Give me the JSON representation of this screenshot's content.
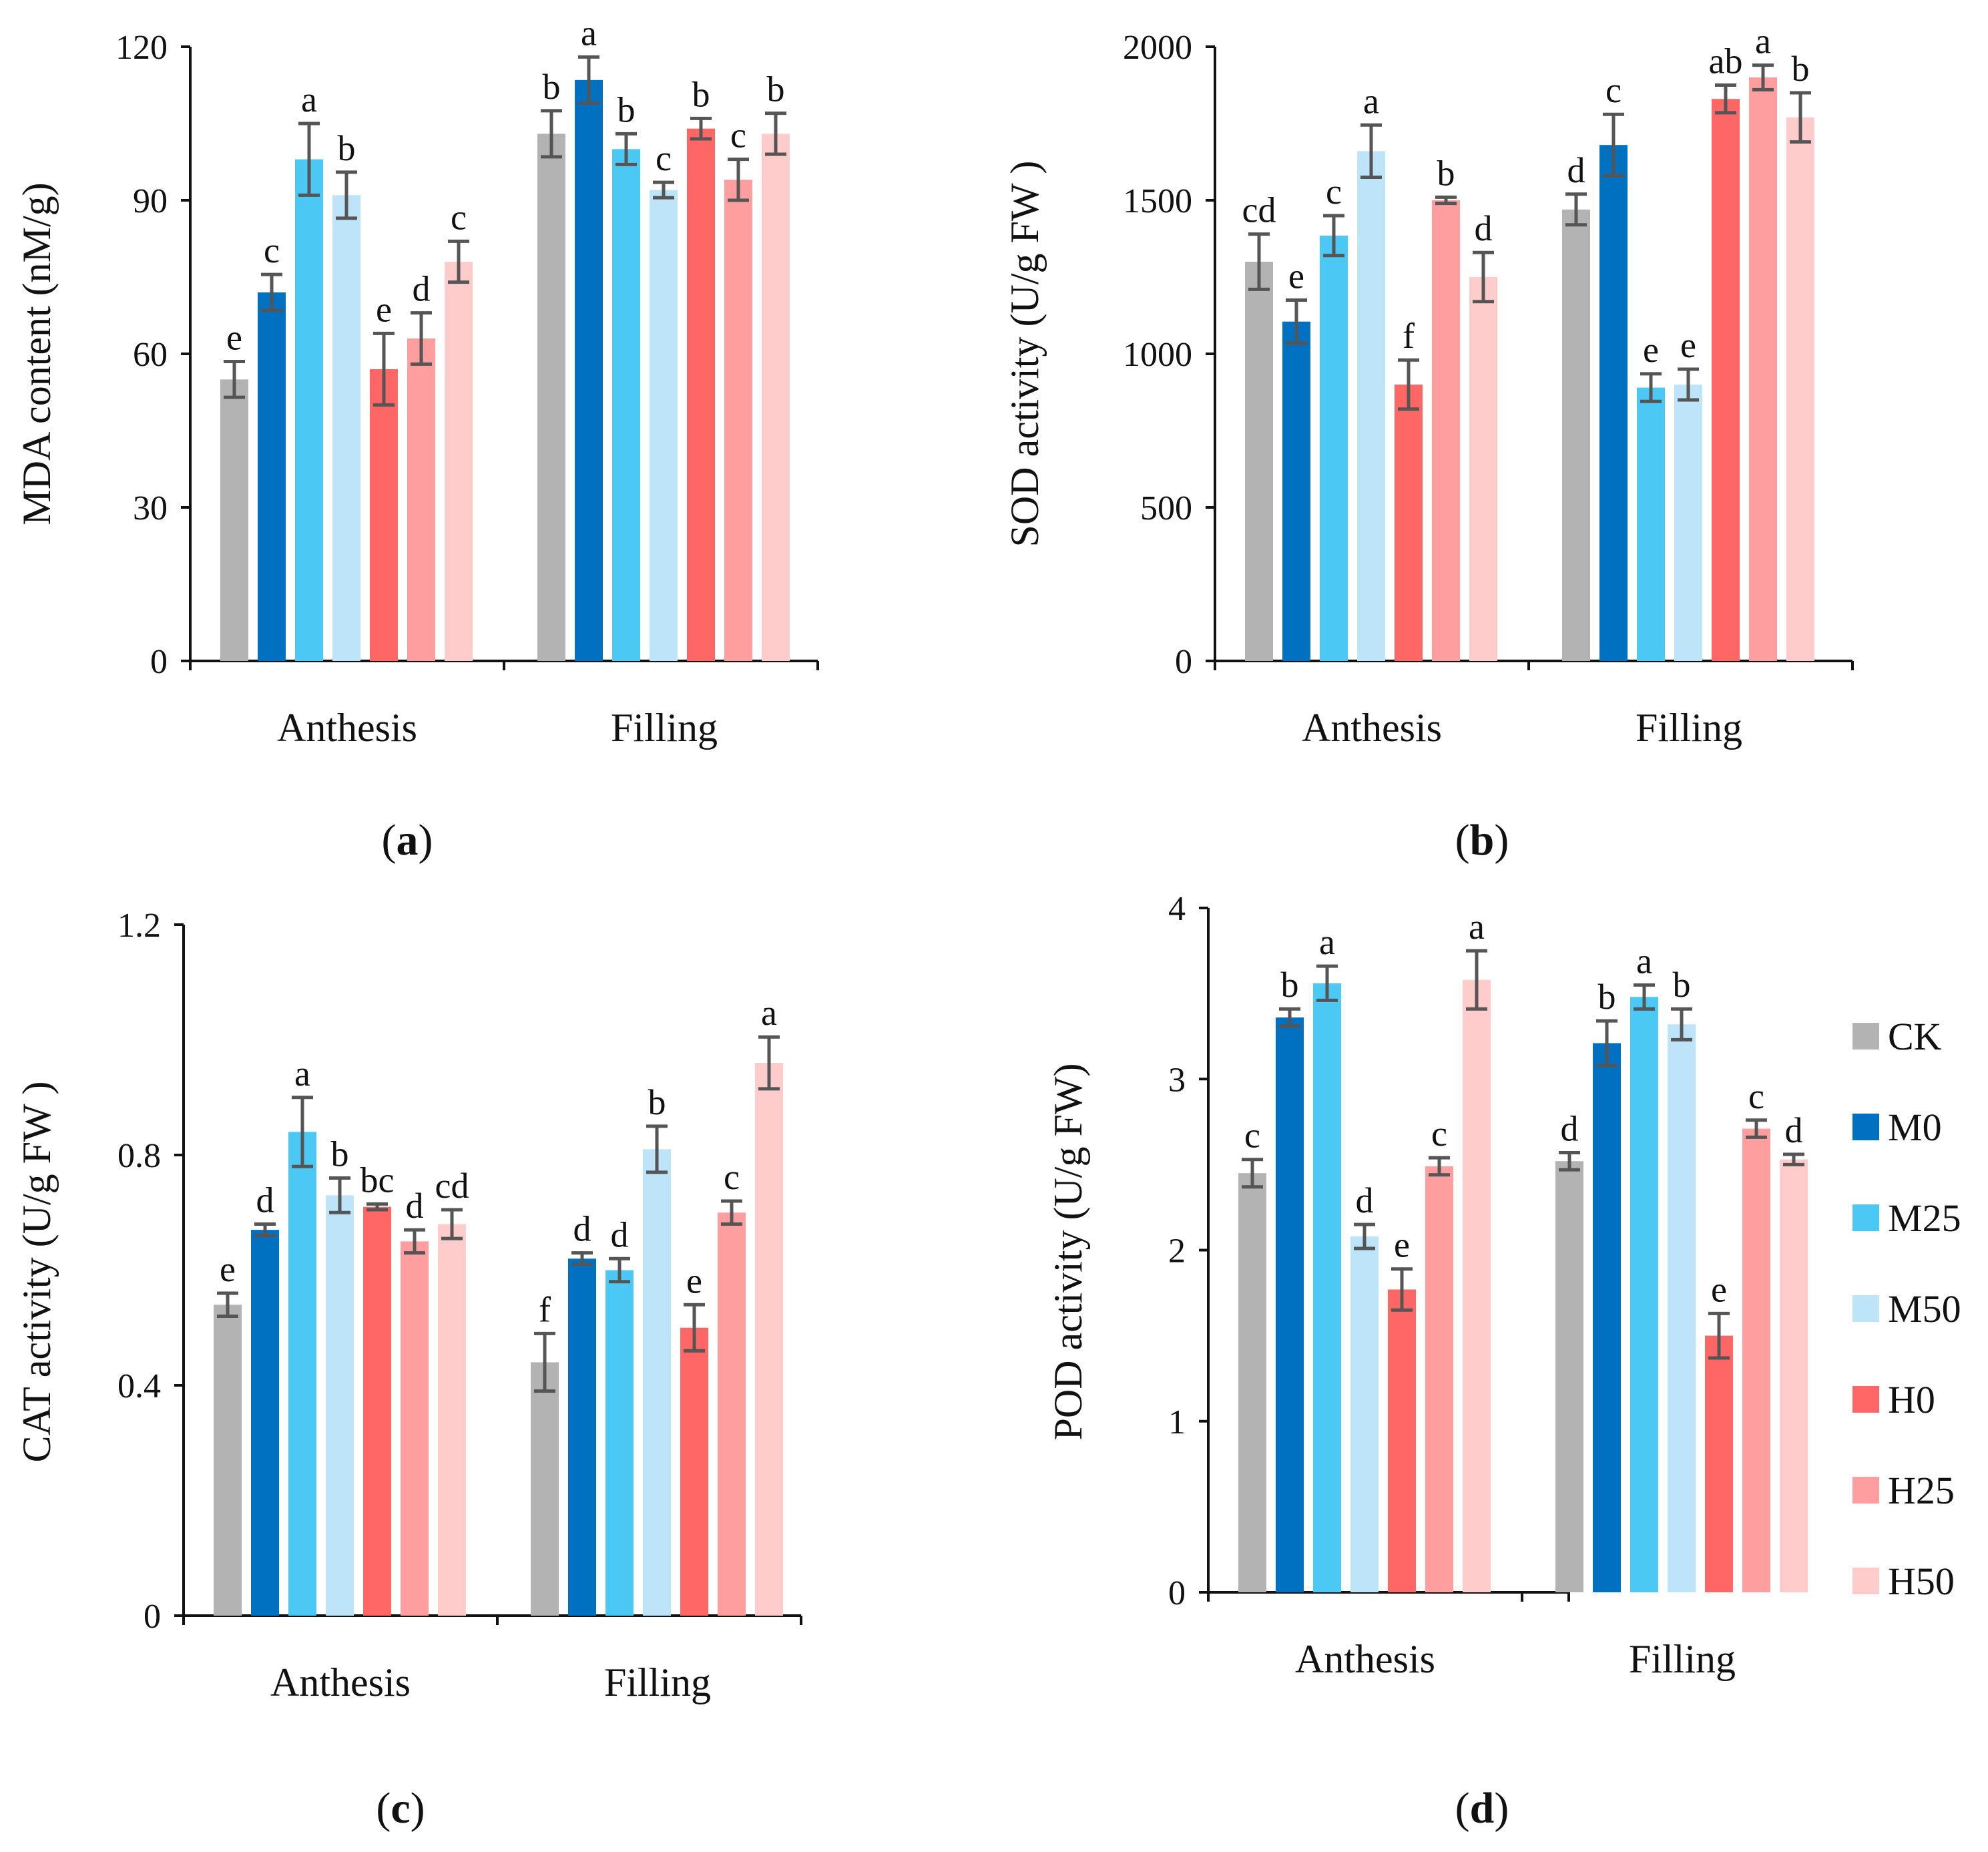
{
  "series_names": [
    "CK",
    "M0",
    "M25",
    "M50",
    "H0",
    "H25",
    "H50"
  ],
  "colors": {
    "CK": "#b3b3b3",
    "M0": "#0070c0",
    "M25": "#4cc8f4",
    "M50": "#bde4f8",
    "H0": "#ff6666",
    "H25": "#ff9e9e",
    "H50": "#ffcccc",
    "error_bar": "#555555",
    "axis": "#111111"
  },
  "legend": {
    "placement": "right of panel d",
    "entries": [
      "CK",
      "M0",
      "M25",
      "M50",
      "H0",
      "H25",
      "H50"
    ]
  },
  "chart_data": [
    {
      "panel": "a",
      "label_open": "(",
      "label_letter": "a",
      "label_close": ")",
      "type": "bar",
      "ylabel": "MDA content (nM/g)",
      "ylim": [
        0,
        120
      ],
      "yticks": [
        "0",
        "30",
        "60",
        "90",
        "120"
      ],
      "categories": [
        "Anthesis",
        "Filling"
      ],
      "series": [
        {
          "name": "CK",
          "values": [
            55,
            103
          ],
          "errors": [
            3.5,
            4.5
          ],
          "letters": [
            "e",
            "b"
          ]
        },
        {
          "name": "M0",
          "values": [
            72,
            113.5
          ],
          "errors": [
            3.5,
            4.5
          ],
          "letters": [
            "c",
            "a"
          ]
        },
        {
          "name": "M25",
          "values": [
            98,
            100
          ],
          "errors": [
            7,
            3
          ],
          "letters": [
            "a",
            "b"
          ]
        },
        {
          "name": "M50",
          "values": [
            91,
            92
          ],
          "errors": [
            4.5,
            1.5
          ],
          "letters": [
            "b",
            "c"
          ]
        },
        {
          "name": "H0",
          "values": [
            57,
            104
          ],
          "errors": [
            7,
            2
          ],
          "letters": [
            "e",
            "b"
          ]
        },
        {
          "name": "H25",
          "values": [
            63,
            94
          ],
          "errors": [
            5,
            4
          ],
          "letters": [
            "d",
            "c"
          ]
        },
        {
          "name": "H50",
          "values": [
            78,
            103
          ],
          "errors": [
            4,
            4
          ],
          "letters": [
            "c",
            "b"
          ]
        }
      ]
    },
    {
      "panel": "b",
      "label_open": "(",
      "label_letter": "b",
      "label_close": ")",
      "type": "bar",
      "ylabel": "SOD activity (U/g FW )",
      "ylim": [
        0,
        2000
      ],
      "yticks": [
        "0",
        "500",
        "1000",
        "1500",
        "2000"
      ],
      "categories": [
        "Anthesis",
        "Filling"
      ],
      "series": [
        {
          "name": "CK",
          "values": [
            1300,
            1470
          ],
          "errors": [
            90,
            50
          ],
          "letters": [
            "cd",
            "d"
          ]
        },
        {
          "name": "M0",
          "values": [
            1105,
            1680
          ],
          "errors": [
            70,
            100
          ],
          "letters": [
            "e",
            "c"
          ]
        },
        {
          "name": "M25",
          "values": [
            1385,
            890
          ],
          "errors": [
            65,
            45
          ],
          "letters": [
            "c",
            "e"
          ]
        },
        {
          "name": "M50",
          "values": [
            1660,
            900
          ],
          "errors": [
            85,
            50
          ],
          "letters": [
            "a",
            "e"
          ]
        },
        {
          "name": "H0",
          "values": [
            900,
            1830
          ],
          "errors": [
            80,
            45
          ],
          "letters": [
            "f",
            "ab"
          ]
        },
        {
          "name": "H25",
          "values": [
            1500,
            1900
          ],
          "errors": [
            10,
            40
          ],
          "letters": [
            "b",
            "a"
          ]
        },
        {
          "name": "H50",
          "values": [
            1250,
            1770
          ],
          "errors": [
            80,
            80
          ],
          "letters": [
            "d",
            "b"
          ]
        }
      ]
    },
    {
      "panel": "c",
      "label_open": "(",
      "label_letter": "c",
      "label_close": ")",
      "type": "bar",
      "ylabel": "CAT activity (U/g FW )",
      "ylim": [
        0,
        1.2
      ],
      "yticks": [
        "0",
        "0.4",
        "0.8",
        "1.2"
      ],
      "categories": [
        "Anthesis",
        "Filling"
      ],
      "series": [
        {
          "name": "CK",
          "values": [
            0.54,
            0.44
          ],
          "errors": [
            0.02,
            0.05
          ],
          "letters": [
            "e",
            "f"
          ]
        },
        {
          "name": "M0",
          "values": [
            0.67,
            0.62
          ],
          "errors": [
            0.01,
            0.01
          ],
          "letters": [
            "d",
            "d"
          ]
        },
        {
          "name": "M25",
          "values": [
            0.84,
            0.6
          ],
          "errors": [
            0.06,
            0.02
          ],
          "letters": [
            "a",
            "d"
          ]
        },
        {
          "name": "M50",
          "values": [
            0.73,
            0.81
          ],
          "errors": [
            0.03,
            0.04
          ],
          "letters": [
            "b",
            "b"
          ]
        },
        {
          "name": "H0",
          "values": [
            0.71,
            0.5
          ],
          "errors": [
            0.005,
            0.04
          ],
          "letters": [
            "bc",
            "e"
          ]
        },
        {
          "name": "H25",
          "values": [
            0.65,
            0.7
          ],
          "errors": [
            0.02,
            0.02
          ],
          "letters": [
            "d",
            "c"
          ]
        },
        {
          "name": "H50",
          "values": [
            0.68,
            0.96
          ],
          "errors": [
            0.025,
            0.045
          ],
          "letters": [
            "cd",
            "a"
          ]
        }
      ]
    },
    {
      "panel": "d",
      "label_open": "(",
      "label_letter": "d",
      "label_close": ")",
      "type": "bar",
      "ylabel": "POD activity (U/g FW)",
      "ylim": [
        0,
        4
      ],
      "yticks": [
        "0",
        "1",
        "2",
        "3",
        "4"
      ],
      "categories": [
        "Anthesis",
        "Filling"
      ],
      "series": [
        {
          "name": "CK",
          "values": [
            2.45,
            2.52
          ],
          "errors": [
            0.08,
            0.05
          ],
          "letters": [
            "c",
            "d"
          ]
        },
        {
          "name": "M0",
          "values": [
            3.36,
            3.21
          ],
          "errors": [
            0.05,
            0.13
          ],
          "letters": [
            "b",
            "b"
          ]
        },
        {
          "name": "M25",
          "values": [
            3.56,
            3.48
          ],
          "errors": [
            0.1,
            0.07
          ],
          "letters": [
            "a",
            "a"
          ]
        },
        {
          "name": "M50",
          "values": [
            2.08,
            3.32
          ],
          "errors": [
            0.07,
            0.09
          ],
          "letters": [
            "d",
            "b"
          ]
        },
        {
          "name": "H0",
          "values": [
            1.77,
            1.5
          ],
          "errors": [
            0.12,
            0.13
          ],
          "letters": [
            "e",
            "e"
          ]
        },
        {
          "name": "H25",
          "values": [
            2.49,
            2.71
          ],
          "errors": [
            0.05,
            0.05
          ],
          "letters": [
            "c",
            "c"
          ]
        },
        {
          "name": "H50",
          "values": [
            3.58,
            2.53
          ],
          "errors": [
            0.17,
            0.03
          ],
          "letters": [
            "a",
            "d"
          ]
        }
      ]
    }
  ]
}
